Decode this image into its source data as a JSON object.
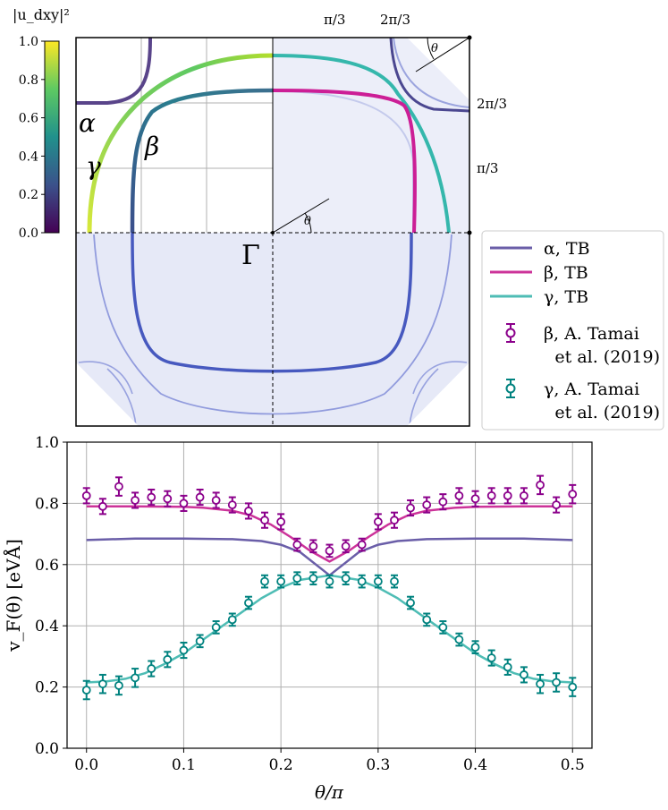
{
  "colorbar": {
    "label": "|u_dxy|²",
    "ticks": [
      "0.0",
      "0.2",
      "0.4",
      "0.6",
      "0.8",
      "1.0"
    ],
    "colors": [
      "#440154",
      "#3b528b",
      "#21918c",
      "#5ec962",
      "#fde725"
    ]
  },
  "fermi_panel": {
    "gamma_label": "Γ",
    "band_labels": [
      "α",
      "β",
      "γ"
    ],
    "top_ticks": [
      "π/3",
      "2π/3"
    ],
    "right_ticks": [
      "2π/3",
      "π/3"
    ],
    "angle_label": "θ"
  },
  "legend": {
    "entries": [
      {
        "text": "α,  TB",
        "color": "#6a5ea8",
        "kind": "line"
      },
      {
        "text": "β,  TB",
        "color": "#cc3399",
        "kind": "line"
      },
      {
        "text": "γ,  TB",
        "color": "#4fbdb5",
        "kind": "line"
      },
      {
        "text": "β,  A. Tamai",
        "text2": "et al. (2019)",
        "color": "#8b008b",
        "kind": "errorbar"
      },
      {
        "text": "γ,  A. Tamai",
        "text2": "et al. (2019)",
        "color": "#00827f",
        "kind": "errorbar"
      }
    ]
  },
  "chart_data": {
    "type": "line",
    "xlabel": "θ/π",
    "ylabel": "v_F(θ)  [eVÅ]",
    "xlim": [
      -0.02,
      0.52
    ],
    "ylim": [
      0.0,
      1.0
    ],
    "xticks": [
      "0.0",
      "0.1",
      "0.2",
      "0.3",
      "0.4",
      "0.5"
    ],
    "yticks": [
      "0.0",
      "0.2",
      "0.4",
      "0.6",
      "0.8",
      "1.0"
    ],
    "grid": true,
    "series": [
      {
        "name": "α, TB",
        "color": "#6a5ea8",
        "kind": "line",
        "x": [
          0.0,
          0.05,
          0.1,
          0.15,
          0.18,
          0.2,
          0.22,
          0.24,
          0.25,
          0.26,
          0.28,
          0.3,
          0.32,
          0.35,
          0.4,
          0.45,
          0.5
        ],
        "y": [
          0.68,
          0.685,
          0.685,
          0.683,
          0.677,
          0.665,
          0.64,
          0.59,
          0.565,
          0.59,
          0.64,
          0.665,
          0.677,
          0.683,
          0.685,
          0.685,
          0.68
        ]
      },
      {
        "name": "β, TB",
        "color": "#cc3399",
        "kind": "line",
        "x": [
          0.0,
          0.05,
          0.1,
          0.12,
          0.15,
          0.17,
          0.19,
          0.21,
          0.23,
          0.25,
          0.27,
          0.29,
          0.31,
          0.33,
          0.35,
          0.38,
          0.4,
          0.45,
          0.5
        ],
        "y": [
          0.79,
          0.79,
          0.789,
          0.786,
          0.776,
          0.76,
          0.73,
          0.69,
          0.645,
          0.61,
          0.645,
          0.69,
          0.73,
          0.76,
          0.776,
          0.786,
          0.789,
          0.79,
          0.79
        ]
      },
      {
        "name": "γ, TB",
        "color": "#4fbdb5",
        "kind": "line",
        "x": [
          0.0,
          0.02,
          0.04,
          0.06,
          0.08,
          0.1,
          0.12,
          0.14,
          0.16,
          0.18,
          0.2,
          0.22,
          0.25,
          0.28,
          0.3,
          0.32,
          0.34,
          0.36,
          0.38,
          0.4,
          0.42,
          0.44,
          0.46,
          0.48,
          0.5
        ],
        "y": [
          0.215,
          0.218,
          0.227,
          0.245,
          0.275,
          0.31,
          0.355,
          0.4,
          0.445,
          0.49,
          0.525,
          0.55,
          0.565,
          0.55,
          0.525,
          0.49,
          0.445,
          0.4,
          0.355,
          0.31,
          0.275,
          0.245,
          0.227,
          0.218,
          0.215
        ]
      },
      {
        "name": "β, A. Tamai et al. (2019)",
        "color": "#8b008b",
        "kind": "errorbar",
        "x": [
          0.0,
          0.0167,
          0.0333,
          0.05,
          0.0667,
          0.0833,
          0.1,
          0.1167,
          0.1333,
          0.15,
          0.1667,
          0.1833,
          0.2,
          0.2167,
          0.2333,
          0.25,
          0.2667,
          0.2833,
          0.3,
          0.3167,
          0.3333,
          0.35,
          0.3667,
          0.3833,
          0.4,
          0.4167,
          0.4333,
          0.45,
          0.4667,
          0.4833,
          0.5
        ],
        "y": [
          0.825,
          0.79,
          0.855,
          0.81,
          0.82,
          0.815,
          0.8,
          0.82,
          0.81,
          0.795,
          0.775,
          0.745,
          0.74,
          0.665,
          0.66,
          0.645,
          0.66,
          0.665,
          0.74,
          0.745,
          0.785,
          0.795,
          0.805,
          0.825,
          0.815,
          0.825,
          0.825,
          0.825,
          0.86,
          0.795,
          0.83
        ],
        "err": [
          0.025,
          0.025,
          0.03,
          0.025,
          0.025,
          0.025,
          0.025,
          0.025,
          0.025,
          0.025,
          0.025,
          0.025,
          0.025,
          0.02,
          0.02,
          0.02,
          0.02,
          0.02,
          0.025,
          0.025,
          0.025,
          0.025,
          0.025,
          0.025,
          0.025,
          0.025,
          0.025,
          0.025,
          0.03,
          0.025,
          0.03
        ]
      },
      {
        "name": "γ, A. Tamai et al. (2019)",
        "color": "#00827f",
        "kind": "errorbar",
        "x": [
          0.0,
          0.0167,
          0.0333,
          0.05,
          0.0667,
          0.0833,
          0.1,
          0.1167,
          0.1333,
          0.15,
          0.1667,
          0.1833,
          0.2,
          0.2167,
          0.2333,
          0.25,
          0.2667,
          0.2833,
          0.3,
          0.3167,
          0.3333,
          0.35,
          0.3667,
          0.3833,
          0.4,
          0.4167,
          0.4333,
          0.45,
          0.4667,
          0.4833,
          0.5
        ],
        "y": [
          0.19,
          0.21,
          0.205,
          0.23,
          0.26,
          0.29,
          0.32,
          0.35,
          0.395,
          0.42,
          0.475,
          0.545,
          0.545,
          0.555,
          0.555,
          0.545,
          0.555,
          0.545,
          0.545,
          0.545,
          0.475,
          0.42,
          0.395,
          0.355,
          0.33,
          0.295,
          0.265,
          0.24,
          0.21,
          0.215,
          0.2
        ],
        "err": [
          0.03,
          0.03,
          0.03,
          0.03,
          0.025,
          0.025,
          0.025,
          0.02,
          0.02,
          0.02,
          0.02,
          0.02,
          0.02,
          0.02,
          0.02,
          0.02,
          0.02,
          0.02,
          0.02,
          0.02,
          0.02,
          0.02,
          0.02,
          0.02,
          0.02,
          0.025,
          0.025,
          0.025,
          0.03,
          0.03,
          0.03
        ]
      }
    ]
  }
}
